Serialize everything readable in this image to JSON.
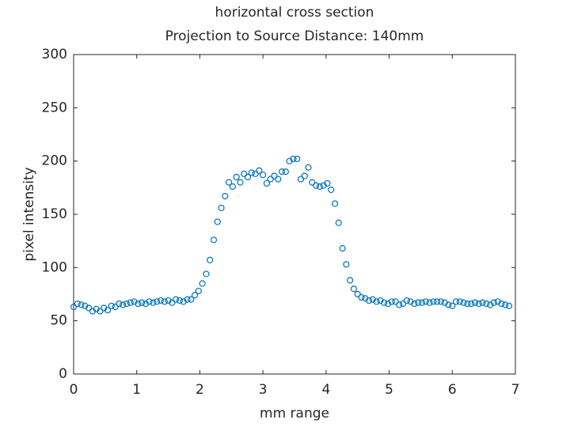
{
  "chart_data": {
    "type": "scatter",
    "title": "horizontal cross section",
    "subtitle": "Projection to Source Distance: 140mm",
    "x_label": "mm range",
    "y_label": "pixel intensity",
    "xlim": [
      0,
      7
    ],
    "xticks": [
      0,
      1,
      2,
      3,
      4,
      5,
      6,
      7
    ],
    "ylim": [
      0,
      300
    ],
    "yticks": [
      0,
      50,
      100,
      150,
      200,
      250,
      300
    ],
    "grid": false,
    "marker": "circle-open",
    "series": [
      {
        "color": "#0072bd",
        "x": [
          0,
          0.06,
          0.12,
          0.18,
          0.24,
          0.3,
          0.36,
          0.42,
          0.48,
          0.54,
          0.6,
          0.66,
          0.72,
          0.78,
          0.84,
          0.9,
          0.96,
          1.02,
          1.08,
          1.14,
          1.2,
          1.26,
          1.32,
          1.38,
          1.44,
          1.5,
          1.56,
          1.62,
          1.68,
          1.74,
          1.8,
          1.86,
          1.92,
          1.98,
          2.04,
          2.1,
          2.16,
          2.22,
          2.28,
          2.34,
          2.4,
          2.46,
          2.52,
          2.58,
          2.64,
          2.7,
          2.76,
          2.82,
          2.88,
          2.94,
          3,
          3.06,
          3.12,
          3.18,
          3.24,
          3.3,
          3.36,
          3.42,
          3.48,
          3.54,
          3.6,
          3.66,
          3.72,
          3.78,
          3.84,
          3.9,
          3.96,
          4.02,
          4.08,
          4.14,
          4.2,
          4.26,
          4.32,
          4.38,
          4.44,
          4.5,
          4.56,
          4.62,
          4.68,
          4.74,
          4.8,
          4.86,
          4.92,
          4.98,
          5.04,
          5.1,
          5.16,
          5.22,
          5.28,
          5.34,
          5.4,
          5.46,
          5.52,
          5.58,
          5.64,
          5.7,
          5.76,
          5.82,
          5.88,
          5.94,
          6,
          6.06,
          6.12,
          6.18,
          6.24,
          6.3,
          6.36,
          6.42,
          6.48,
          6.54,
          6.6,
          6.66,
          6.72,
          6.78,
          6.84,
          6.9
        ],
        "values": [
          63,
          66,
          65,
          64,
          62,
          59,
          61,
          59,
          62,
          60,
          64,
          63,
          66,
          65,
          66,
          67,
          68,
          66,
          67,
          66,
          68,
          67,
          68,
          69,
          68,
          69,
          67,
          70,
          69,
          68,
          70,
          70,
          74,
          78,
          85,
          94,
          107,
          126,
          143,
          156,
          167,
          180,
          176,
          185,
          180,
          188,
          185,
          189,
          188,
          191,
          187,
          179,
          183,
          186,
          183,
          190,
          190,
          200,
          202,
          202,
          183,
          186,
          194,
          180,
          177,
          176,
          177,
          179,
          173,
          160,
          142,
          118,
          103,
          88,
          80,
          75,
          72,
          71,
          69,
          70,
          68,
          69,
          67,
          66,
          68,
          68,
          65,
          66,
          69,
          68,
          66,
          67,
          67,
          68,
          67,
          68,
          68,
          68,
          67,
          65,
          64,
          68,
          68,
          67,
          66,
          66,
          67,
          66,
          67,
          66,
          65,
          67,
          68,
          66,
          65,
          64
        ]
      }
    ]
  }
}
